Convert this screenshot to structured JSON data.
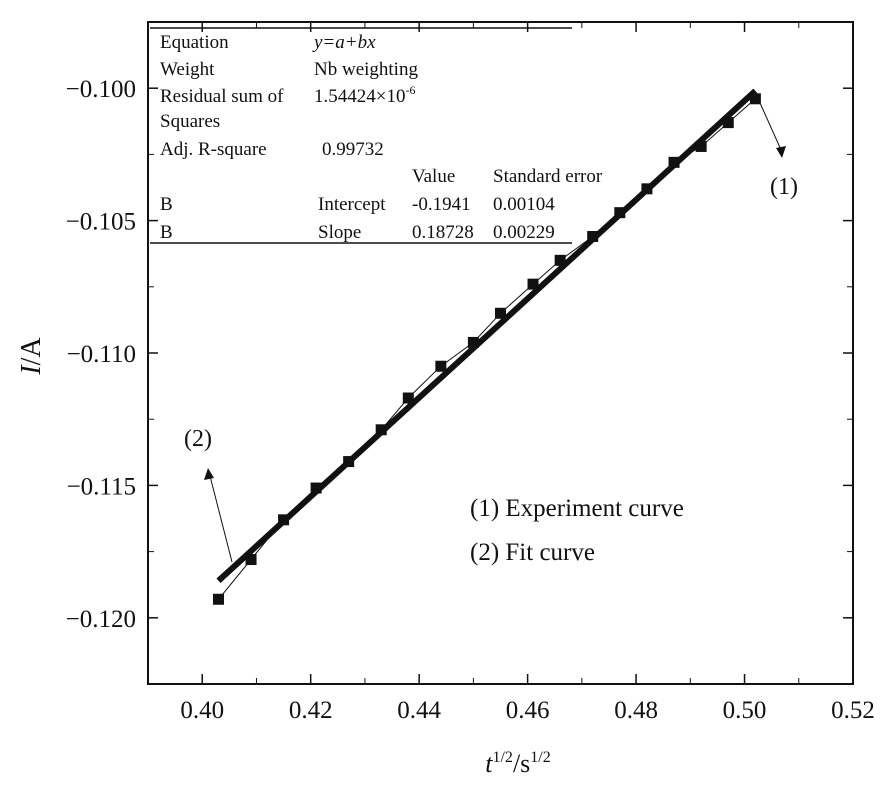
{
  "chart_data": {
    "type": "scatter",
    "xlabel": "t^1/2/s^1/2",
    "ylabel": "I/A",
    "xlim": [
      0.39,
      0.52
    ],
    "ylim": [
      -0.1225,
      -0.0975
    ],
    "xticks": [
      0.4,
      0.42,
      0.44,
      0.46,
      0.48,
      0.5,
      0.52
    ],
    "xtick_labels": [
      "0.40",
      "0.42",
      "0.44",
      "0.46",
      "0.48",
      "0.50",
      "0.52"
    ],
    "yticks": [
      -0.1,
      -0.105,
      -0.11,
      -0.115,
      -0.12
    ],
    "ytick_labels": [
      "−0.100",
      "−0.105",
      "−0.110",
      "−0.115",
      "−0.120"
    ],
    "grid": false,
    "series": [
      {
        "name": "(1) Experiment curve",
        "marker": "square",
        "x": [
          0.403,
          0.409,
          0.415,
          0.421,
          0.427,
          0.433,
          0.438,
          0.444,
          0.45,
          0.455,
          0.461,
          0.466,
          0.472,
          0.477,
          0.482,
          0.487,
          0.492,
          0.497,
          0.502
        ],
        "y": [
          -0.1193,
          -0.1178,
          -0.1163,
          -0.1151,
          -0.1141,
          -0.1129,
          -0.1117,
          -0.1105,
          -0.1096,
          -0.1085,
          -0.1074,
          -0.1065,
          -0.1056,
          -0.1047,
          -0.1038,
          -0.1028,
          -0.1022,
          -0.1013,
          -0.1004
        ]
      },
      {
        "name": "(2) Fit curve",
        "type": "line",
        "x": [
          0.403,
          0.502
        ],
        "y": [
          -0.1186,
          -0.1001
        ]
      }
    ],
    "legend": {
      "position": "lower-right",
      "entries": [
        "(1) Experiment curve",
        "(2) Fit curve"
      ]
    },
    "annotations": [
      {
        "label": "(1)",
        "points_to": "experiment curve end"
      },
      {
        "label": "(2)",
        "points_to": "fit curve start"
      }
    ],
    "fit_table": {
      "equation_label": "Equation",
      "equation_value": "y=a+bx",
      "weight_label": "Weight",
      "weight_value": "Nb weighting",
      "rss_label_1": "Residual sum of",
      "rss_label_2": "Squares",
      "rss_mantissa": "1.54424",
      "rss_times": "×10",
      "rss_exponent": "-6",
      "adjr_label": "Adj. R-square",
      "adjr_value": "0.99732",
      "col_value": "Value",
      "col_stderr": "Standard error",
      "rows": [
        {
          "name": "B",
          "param": "Intercept",
          "value": "-0.1941",
          "stderr": "0.00104"
        },
        {
          "name": "B",
          "param": "Slope",
          "value": "0.18728",
          "stderr": "0.00229"
        }
      ]
    }
  }
}
